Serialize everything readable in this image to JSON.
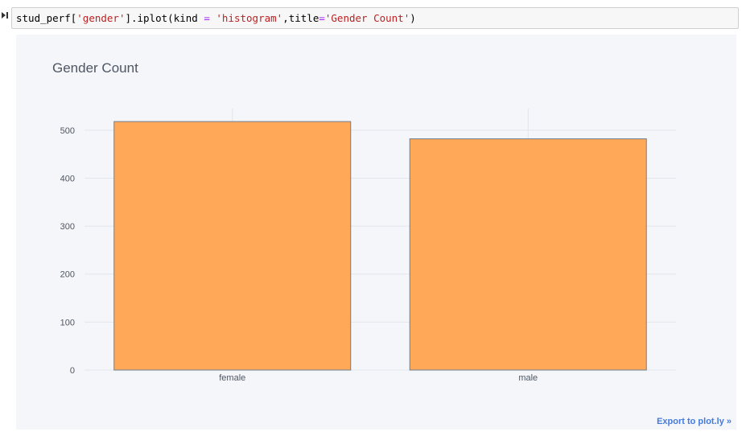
{
  "cell": {
    "code_parts": [
      {
        "text": "stud_perf[",
        "kind": "plain"
      },
      {
        "text": "'gender'",
        "kind": "str"
      },
      {
        "text": "].iplot(kind ",
        "kind": "plain"
      },
      {
        "text": "=",
        "kind": "op"
      },
      {
        "text": " ",
        "kind": "plain"
      },
      {
        "text": "'histogram'",
        "kind": "str"
      },
      {
        "text": ",title",
        "kind": "plain"
      },
      {
        "text": "=",
        "kind": "op"
      },
      {
        "text": "'Gender Count'",
        "kind": "str"
      },
      {
        "text": ")",
        "kind": "plain"
      }
    ]
  },
  "export_label": "Export to plot.ly »",
  "chart_data": {
    "type": "bar",
    "title": "Gender Count",
    "categories": [
      "female",
      "male"
    ],
    "values": [
      518,
      482
    ],
    "xlabel": "",
    "ylabel": "",
    "ylim": [
      0,
      545
    ],
    "yticks": [
      0,
      100,
      200,
      300,
      400,
      500
    ],
    "grid": true,
    "colors": {
      "bar_fill": "#ffa857",
      "bar_edge": "#6d7e95",
      "grid": "#e1e5ed",
      "background": "#f5f6f9",
      "text": "#4d5663"
    }
  }
}
